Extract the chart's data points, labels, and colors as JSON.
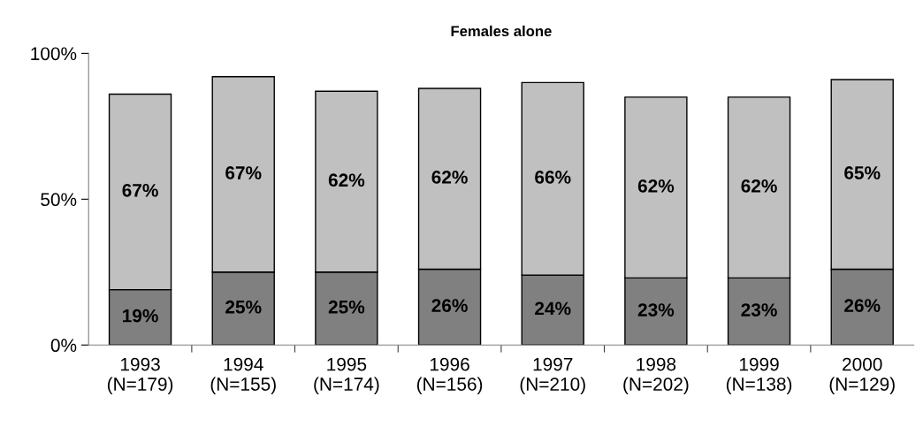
{
  "chart_data": {
    "type": "bar",
    "title": "Females alone",
    "stacked": true,
    "categories": [
      "1993\n(N=179)",
      "1994\n(N=155)",
      "1995\n(N=174)",
      "1996\n(N=156)",
      "1997\n(N=210)",
      "1998\n(N=202)",
      "1999\n(N=138)",
      "2000\n(N=129)"
    ],
    "series": [
      {
        "color": "#808080",
        "values": [
          19,
          25,
          25,
          26,
          24,
          23,
          23,
          26
        ],
        "value_labels": [
          "19%",
          "25%",
          "25%",
          "26%",
          "24%",
          "23%",
          "23%",
          "26%"
        ]
      },
      {
        "color": "#c0c0c0",
        "values": [
          67,
          67,
          62,
          62,
          66,
          62,
          62,
          65
        ],
        "value_labels": [
          "67%",
          "67%",
          "62%",
          "62%",
          "66%",
          "62%",
          "62%",
          "65%"
        ]
      }
    ],
    "ylim": [
      0,
      100
    ],
    "yticks": [
      {
        "value": 0,
        "label": "0%"
      },
      {
        "value": 50,
        "label": "50%"
      },
      {
        "value": 100,
        "label": "100%"
      }
    ],
    "grid": false,
    "legend": false
  }
}
